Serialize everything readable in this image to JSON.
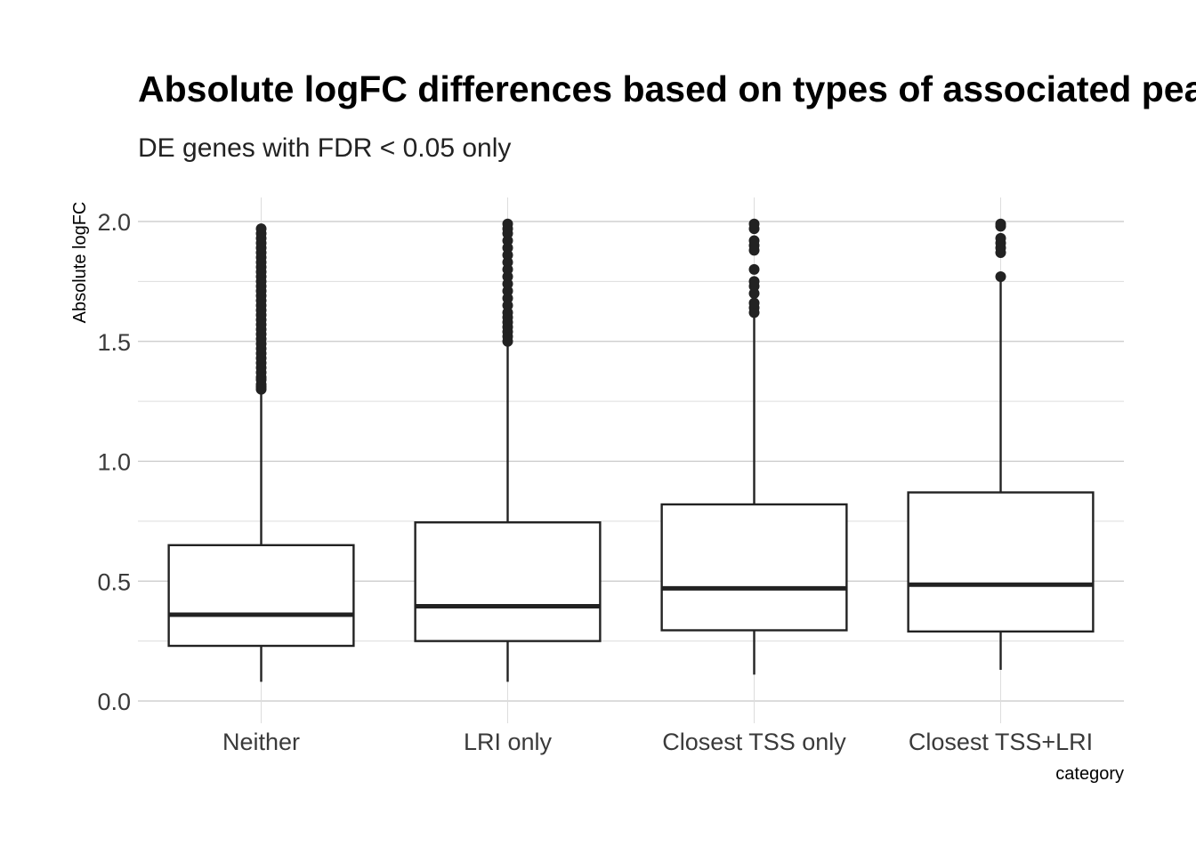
{
  "chart_data": {
    "type": "boxplot",
    "title": "Absolute logFC differences based on types of associated peaks",
    "subtitle": "DE genes with FDR < 0.05 only",
    "xlabel": "category",
    "ylabel": "Absolute logFC",
    "ylim": [
      -0.09,
      2.1
    ],
    "yticks": [
      0.0,
      0.5,
      1.0,
      1.5,
      2.0
    ],
    "ytick_labels": [
      "0.0",
      "0.5",
      "1.0",
      "1.5",
      "2.0"
    ],
    "categories": [
      "Neither",
      "LRI only",
      "Closest TSS only",
      "Closest TSS+LRI"
    ],
    "boxes": [
      {
        "category": "Neither",
        "whisker_low": 0.08,
        "q1": 0.23,
        "median": 0.36,
        "q3": 0.65,
        "whisker_high": 1.29,
        "outliers": [
          1.3,
          1.31,
          1.32,
          1.34,
          1.35,
          1.37,
          1.39,
          1.41,
          1.43,
          1.45,
          1.47,
          1.49,
          1.51,
          1.53,
          1.55,
          1.57,
          1.59,
          1.61,
          1.63,
          1.65,
          1.67,
          1.69,
          1.71,
          1.73,
          1.75,
          1.77,
          1.79,
          1.81,
          1.83,
          1.85,
          1.87,
          1.89,
          1.91,
          1.93,
          1.95,
          1.97
        ]
      },
      {
        "category": "LRI only",
        "whisker_low": 0.08,
        "q1": 0.25,
        "median": 0.395,
        "q3": 0.745,
        "whisker_high": 1.49,
        "outliers": [
          1.5,
          1.52,
          1.54,
          1.56,
          1.58,
          1.6,
          1.62,
          1.65,
          1.68,
          1.71,
          1.74,
          1.77,
          1.8,
          1.83,
          1.86,
          1.89,
          1.92,
          1.95,
          1.97,
          1.99
        ]
      },
      {
        "category": "Closest TSS only",
        "whisker_low": 0.11,
        "q1": 0.295,
        "median": 0.47,
        "q3": 0.82,
        "whisker_high": 1.61,
        "outliers": [
          1.62,
          1.64,
          1.66,
          1.7,
          1.73,
          1.75,
          1.8,
          1.88,
          1.9,
          1.92,
          1.97,
          1.99
        ]
      },
      {
        "category": "Closest TSS+LRI",
        "whisker_low": 0.13,
        "q1": 0.29,
        "median": 0.485,
        "q3": 0.87,
        "whisker_high": 1.76,
        "outliers": [
          1.77,
          1.87,
          1.89,
          1.91,
          1.93,
          1.98,
          1.99
        ]
      }
    ],
    "grid": true,
    "legend": "none"
  }
}
